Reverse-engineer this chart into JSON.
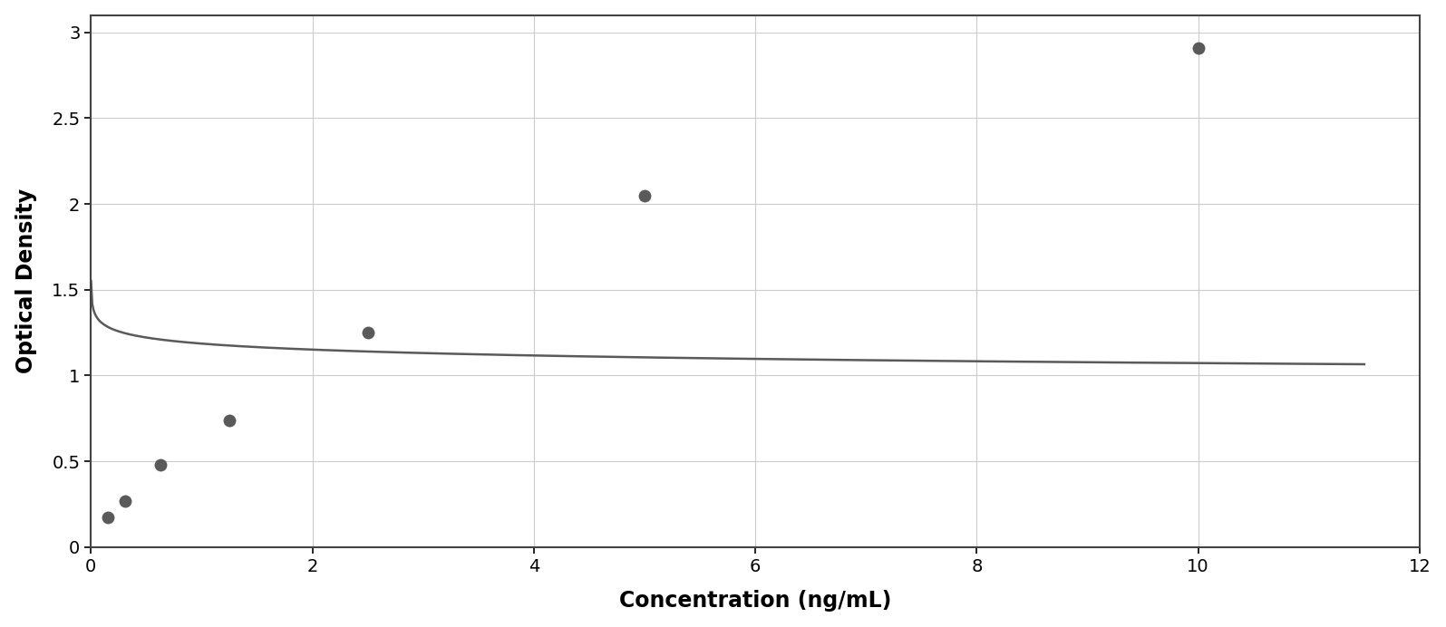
{
  "x_data": [
    0.156,
    0.313,
    0.625,
    1.25,
    2.5,
    5.0,
    10.0
  ],
  "y_data": [
    0.175,
    0.27,
    0.48,
    0.74,
    1.25,
    2.05,
    2.91
  ],
  "data_color": "#5a5a5a",
  "line_color": "#5a5a5a",
  "marker_size": 10,
  "xlabel": "Concentration (ng/mL)",
  "ylabel": "Optical Density",
  "xlim": [
    0,
    12
  ],
  "ylim": [
    0,
    3.1
  ],
  "xticks": [
    0,
    2,
    4,
    6,
    8,
    10,
    12
  ],
  "yticks": [
    0,
    0.5,
    1.0,
    1.5,
    2.0,
    2.5,
    3.0
  ],
  "xlabel_fontsize": 17,
  "ylabel_fontsize": 17,
  "tick_fontsize": 14,
  "grid_color": "#cccccc",
  "plot_bg_color": "#ffffff",
  "figure_bg": "#ffffff",
  "spine_color": "#444444",
  "border_color": "#888888"
}
